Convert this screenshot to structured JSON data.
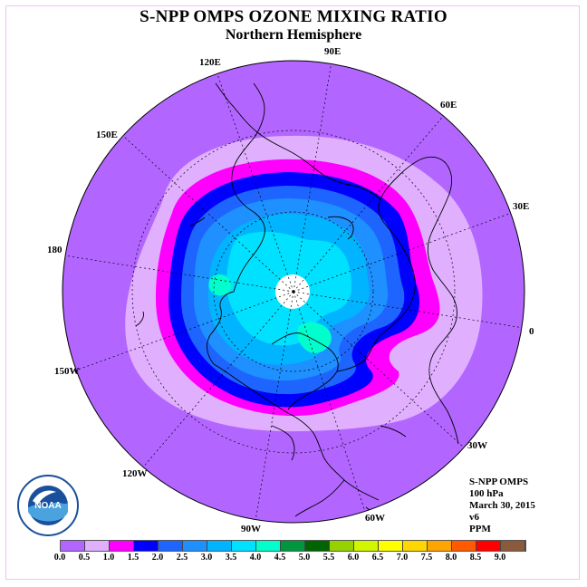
{
  "title": "S-NPP OMPS OZONE MIXING RATIO",
  "subtitle": "Northern Hemisphere",
  "longitude_labels": [
    "90E",
    "60E",
    "30E",
    "0",
    "30W",
    "60W",
    "90W",
    "120W",
    "150W",
    "180",
    "150E",
    "120E"
  ],
  "info": {
    "instrument": "S-NPP OMPS",
    "level": "100 hPa",
    "date": "March 30, 2015",
    "version": "v6",
    "units": "PPM"
  },
  "logo": {
    "name": "NOAA",
    "text": "NOAA"
  },
  "colorbar": {
    "ticks": [
      "0.0",
      "0.5",
      "1.0",
      "1.5",
      "2.0",
      "2.5",
      "3.0",
      "3.5",
      "4.0",
      "4.5",
      "5.0",
      "5.5",
      "6.0",
      "6.5",
      "7.0",
      "7.5",
      "8.0",
      "8.5",
      "9.0"
    ],
    "colors": [
      "#b266ff",
      "#e0b0ff",
      "#ff00ff",
      "#0000ff",
      "#1e64ff",
      "#1e90ff",
      "#00b4ff",
      "#00e0ff",
      "#00ffcc",
      "#009640",
      "#006400",
      "#96d200",
      "#d2f500",
      "#ffff00",
      "#ffd700",
      "#ffa500",
      "#ff5a00",
      "#ff0000",
      "#8b5a3c"
    ]
  },
  "map": {
    "projection": "north-polar-stereographic",
    "fill_colors": {
      "outer": "#b266ff",
      "band_0_5": "#e0b0ff",
      "band_1_0": "#ff00ff",
      "band_1_5": "#0000ff",
      "band_2_0": "#1e64ff",
      "band_2_5": "#1e90ff",
      "band_3_0": "#00b4ff",
      "band_3_5": "#00e0ff",
      "band_4_0": "#00ffcc",
      "pole_nodata": "#ffffff"
    }
  }
}
